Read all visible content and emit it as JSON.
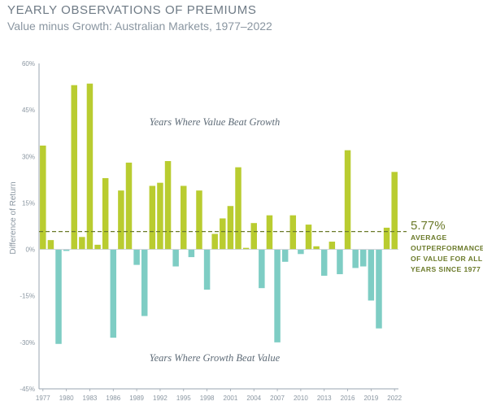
{
  "header": {
    "title": "YEARLY OBSERVATIONS OF PREMIUMS",
    "subtitle": "Value minus Growth: Australian Markets, 1977–2022"
  },
  "colors": {
    "positive": "#b9cc30",
    "negative": "#7ecdc4",
    "average_line": "#6b7a2a",
    "axis": "#9aa5b0"
  },
  "chart_data": {
    "type": "bar",
    "ylabel": "Difference of Return",
    "ylim": [
      -45,
      60
    ],
    "yticks": [
      60,
      45,
      30,
      15,
      0,
      -15,
      -30,
      -45
    ],
    "ytick_labels": [
      "60%",
      "45%",
      "30%",
      "15%",
      "0%",
      "-15%",
      "-30%",
      "-45%"
    ],
    "xtick_labels": [
      "1977",
      "1980",
      "1983",
      "1986",
      "1989",
      "1992",
      "1995",
      "1998",
      "2001",
      "2004",
      "2007",
      "2010",
      "2013",
      "2016",
      "2019",
      "2022"
    ],
    "categories": [
      1977,
      1978,
      1979,
      1980,
      1981,
      1982,
      1983,
      1984,
      1985,
      1986,
      1987,
      1988,
      1989,
      1990,
      1991,
      1992,
      1993,
      1994,
      1995,
      1996,
      1997,
      1998,
      1999,
      2000,
      2001,
      2002,
      2003,
      2004,
      2005,
      2006,
      2007,
      2008,
      2009,
      2010,
      2011,
      2012,
      2013,
      2014,
      2015,
      2016,
      2017,
      2018,
      2019,
      2020,
      2021,
      2022
    ],
    "values": [
      33.5,
      3,
      -30.5,
      -0.5,
      53,
      4,
      53.5,
      1.5,
      23,
      -28.5,
      19,
      28,
      -5,
      -21.5,
      20.5,
      21.5,
      28.5,
      -5.5,
      20.5,
      -2.5,
      19,
      -13,
      5,
      10,
      14,
      26.5,
      0.5,
      8.5,
      -12.5,
      11,
      -30,
      -4,
      11,
      -1.5,
      8,
      1,
      -8.5,
      2.5,
      -8,
      32,
      -6,
      -5.5,
      -16.5,
      -25.5,
      7,
      25
    ],
    "annotations": {
      "top_region": "Years Where Value Beat Growth",
      "bottom_region": "Years Where Growth Beat Value"
    },
    "average": {
      "value": 5.77,
      "label": "5.77%",
      "text_lines": [
        "AVERAGE",
        "OUTPERFORMANCE",
        "OF VALUE FOR ALL",
        "YEARS SINCE 1977"
      ]
    }
  }
}
